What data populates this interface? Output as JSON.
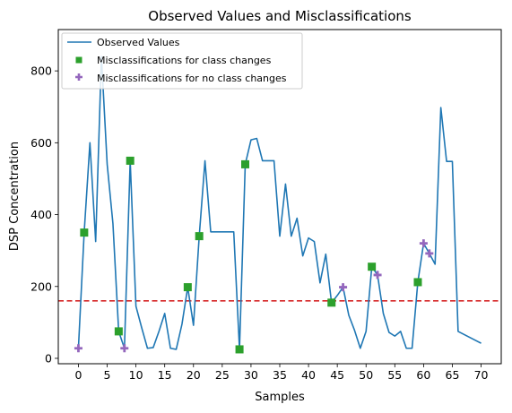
{
  "chart_data": {
    "type": "line",
    "title": "Observed Values and Misclassifications",
    "xlabel": "Samples",
    "ylabel": "DSP Concentration",
    "xlim": [
      -3.5,
      73.5
    ],
    "ylim": [
      -15,
      915
    ],
    "xticks": [
      0,
      5,
      10,
      15,
      20,
      25,
      30,
      35,
      40,
      45,
      50,
      55,
      60,
      65,
      70
    ],
    "yticks": [
      0,
      200,
      400,
      600,
      800
    ],
    "threshold": 160,
    "legend_position": "upper-left",
    "colors": {
      "line": "#1f77b4",
      "class_change": "#2ca02c",
      "no_class_change": "#9467bd",
      "threshold": "#d62728"
    },
    "series": [
      {
        "name": "Observed Values",
        "kind": "line",
        "points": [
          [
            0,
            28
          ],
          [
            1,
            350
          ],
          [
            2,
            600
          ],
          [
            3,
            325
          ],
          [
            4,
            840
          ],
          [
            5,
            540
          ],
          [
            6,
            375
          ],
          [
            7,
            75
          ],
          [
            8,
            28
          ],
          [
            9,
            550
          ],
          [
            10,
            145
          ],
          [
            11,
            85
          ],
          [
            12,
            28
          ],
          [
            13,
            30
          ],
          [
            14,
            75
          ],
          [
            15,
            125
          ],
          [
            16,
            28
          ],
          [
            17,
            25
          ],
          [
            18,
            95
          ],
          [
            19,
            198
          ],
          [
            20,
            92
          ],
          [
            21,
            340
          ],
          [
            22,
            550
          ],
          [
            23,
            352
          ],
          [
            24,
            352
          ],
          [
            25,
            352
          ],
          [
            26,
            352
          ],
          [
            27,
            352
          ],
          [
            28,
            25
          ],
          [
            29,
            540
          ],
          [
            30,
            608
          ],
          [
            31,
            612
          ],
          [
            32,
            550
          ],
          [
            33,
            550
          ],
          [
            34,
            550
          ],
          [
            35,
            340
          ],
          [
            36,
            485
          ],
          [
            37,
            340
          ],
          [
            38,
            390
          ],
          [
            39,
            285
          ],
          [
            40,
            335
          ],
          [
            41,
            325
          ],
          [
            42,
            210
          ],
          [
            43,
            290
          ],
          [
            44,
            155
          ],
          [
            45,
            175
          ],
          [
            46,
            198
          ],
          [
            47,
            120
          ],
          [
            48,
            78
          ],
          [
            49,
            28
          ],
          [
            50,
            75
          ],
          [
            51,
            255
          ],
          [
            52,
            232
          ],
          [
            53,
            125
          ],
          [
            54,
            72
          ],
          [
            55,
            62
          ],
          [
            56,
            75
          ],
          [
            57,
            28
          ],
          [
            58,
            28
          ],
          [
            59,
            212
          ],
          [
            60,
            320
          ],
          [
            61,
            292
          ],
          [
            62,
            262
          ],
          [
            63,
            698
          ],
          [
            64,
            548
          ],
          [
            65,
            548
          ],
          [
            66,
            75
          ],
          [
            70,
            42
          ]
        ]
      },
      {
        "name": "Misclassifications for class changes",
        "kind": "square",
        "points": [
          [
            1,
            350
          ],
          [
            7,
            75
          ],
          [
            9,
            550
          ],
          [
            19,
            198
          ],
          [
            21,
            340
          ],
          [
            28,
            25
          ],
          [
            29,
            540
          ],
          [
            44,
            155
          ],
          [
            51,
            255
          ],
          [
            59,
            212
          ]
        ]
      },
      {
        "name": "Misclassifications for no class changes",
        "kind": "plus",
        "points": [
          [
            0,
            28
          ],
          [
            8,
            28
          ],
          [
            46,
            198
          ],
          [
            52,
            232
          ],
          [
            60,
            320
          ],
          [
            61,
            292
          ]
        ]
      }
    ]
  }
}
